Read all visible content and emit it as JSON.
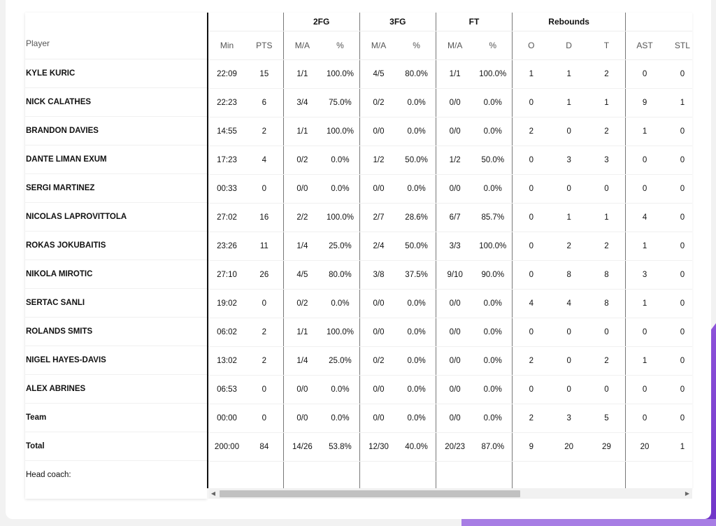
{
  "table": {
    "player_header": "Player",
    "groups": [
      "",
      "2FG",
      "3FG",
      "FT",
      "Rebounds",
      ""
    ],
    "columns": [
      "Min",
      "PTS",
      "M/A",
      "%",
      "M/A",
      "%",
      "M/A",
      "%",
      "O",
      "D",
      "T",
      "AST",
      "STL"
    ],
    "rows": [
      {
        "name": "KYLE KURIC",
        "v": [
          "22:09",
          "15",
          "1/1",
          "100.0%",
          "4/5",
          "80.0%",
          "1/1",
          "100.0%",
          "1",
          "1",
          "2",
          "0",
          "0"
        ]
      },
      {
        "name": "NICK CALATHES",
        "v": [
          "22:23",
          "6",
          "3/4",
          "75.0%",
          "0/2",
          "0.0%",
          "0/0",
          "0.0%",
          "0",
          "1",
          "1",
          "9",
          "1"
        ]
      },
      {
        "name": "BRANDON DAVIES",
        "v": [
          "14:55",
          "2",
          "1/1",
          "100.0%",
          "0/0",
          "0.0%",
          "0/0",
          "0.0%",
          "2",
          "0",
          "2",
          "1",
          "0"
        ]
      },
      {
        "name": "DANTE LIMAN EXUM",
        "v": [
          "17:23",
          "4",
          "0/2",
          "0.0%",
          "1/2",
          "50.0%",
          "1/2",
          "50.0%",
          "0",
          "3",
          "3",
          "0",
          "0"
        ]
      },
      {
        "name": "SERGI MARTINEZ",
        "v": [
          "00:33",
          "0",
          "0/0",
          "0.0%",
          "0/0",
          "0.0%",
          "0/0",
          "0.0%",
          "0",
          "0",
          "0",
          "0",
          "0"
        ]
      },
      {
        "name": "NICOLAS LAPROVITTOLA",
        "v": [
          "27:02",
          "16",
          "2/2",
          "100.0%",
          "2/7",
          "28.6%",
          "6/7",
          "85.7%",
          "0",
          "1",
          "1",
          "4",
          "0"
        ]
      },
      {
        "name": "ROKAS JOKUBAITIS",
        "v": [
          "23:26",
          "11",
          "1/4",
          "25.0%",
          "2/4",
          "50.0%",
          "3/3",
          "100.0%",
          "0",
          "2",
          "2",
          "1",
          "0"
        ]
      },
      {
        "name": "NIKOLA MIROTIC",
        "v": [
          "27:10",
          "26",
          "4/5",
          "80.0%",
          "3/8",
          "37.5%",
          "9/10",
          "90.0%",
          "0",
          "8",
          "8",
          "3",
          "0"
        ]
      },
      {
        "name": "SERTAC SANLI",
        "v": [
          "19:02",
          "0",
          "0/2",
          "0.0%",
          "0/0",
          "0.0%",
          "0/0",
          "0.0%",
          "4",
          "4",
          "8",
          "1",
          "0"
        ]
      },
      {
        "name": "ROLANDS SMITS",
        "v": [
          "06:02",
          "2",
          "1/1",
          "100.0%",
          "0/0",
          "0.0%",
          "0/0",
          "0.0%",
          "0",
          "0",
          "0",
          "0",
          "0"
        ]
      },
      {
        "name": "NIGEL HAYES-DAVIS",
        "v": [
          "13:02",
          "2",
          "1/4",
          "25.0%",
          "0/2",
          "0.0%",
          "0/0",
          "0.0%",
          "2",
          "0",
          "2",
          "1",
          "0"
        ]
      },
      {
        "name": "ALEX ABRINES",
        "v": [
          "06:53",
          "0",
          "0/0",
          "0.0%",
          "0/0",
          "0.0%",
          "0/0",
          "0.0%",
          "0",
          "0",
          "0",
          "0",
          "0"
        ]
      },
      {
        "name": "Team",
        "v": [
          "00:00",
          "0",
          "0/0",
          "0.0%",
          "0/0",
          "0.0%",
          "0/0",
          "0.0%",
          "2",
          "3",
          "5",
          "0",
          "0"
        ]
      },
      {
        "name": "Total",
        "v": [
          "200:00",
          "84",
          "14/26",
          "53.8%",
          "12/30",
          "40.0%",
          "20/23",
          "87.0%",
          "9",
          "20",
          "29",
          "20",
          "1"
        ]
      }
    ],
    "coach_label": "Head coach:"
  },
  "scrollbar": {
    "left_arrow": "◀",
    "right_arrow": "▶"
  }
}
